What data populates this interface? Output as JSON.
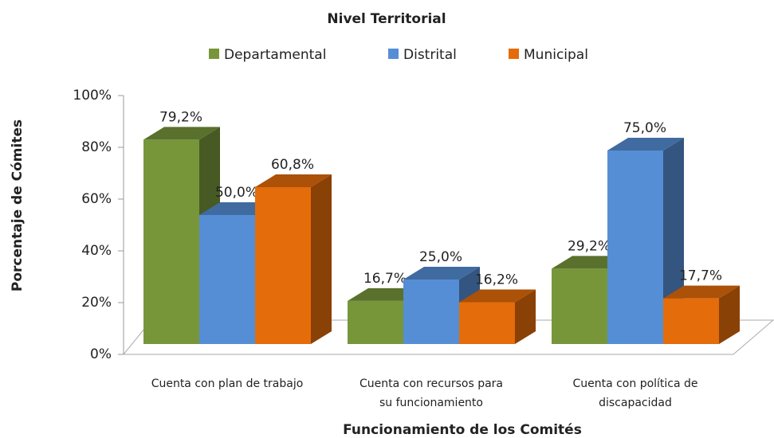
{
  "chart_data": {
    "type": "bar3d",
    "title": "Nivel Territorial",
    "xlabel": "Funcionamiento de los Comités",
    "ylabel": "Porcentaje de Cómites",
    "categories": [
      "Cuenta con plan de trabajo",
      "Cuenta con recursos para su funcionamiento",
      "Cuenta con política de discapacidad"
    ],
    "series": [
      {
        "name": "Departamental",
        "color": "#77963a",
        "values": [
          79.2,
          16.7,
          29.2
        ],
        "value_labels": [
          "79,2%",
          "16,7%",
          "29,2%"
        ]
      },
      {
        "name": "Distrital",
        "color": "#558ed5",
        "values": [
          50.0,
          25.0,
          75.0
        ],
        "value_labels": [
          "50,0%",
          "25,0%",
          "75,0%"
        ]
      },
      {
        "name": "Municipal",
        "color": "#e46c0a",
        "values": [
          60.8,
          16.2,
          17.7
        ],
        "value_labels": [
          "60,8%",
          "16,2%",
          "17,7%"
        ]
      }
    ],
    "ylim": [
      0,
      100
    ],
    "yticks": [
      {
        "value": 0,
        "label": "0%"
      },
      {
        "value": 20,
        "label": "20%"
      },
      {
        "value": 40,
        "label": "40%"
      },
      {
        "value": 60,
        "label": "60%"
      },
      {
        "value": 80,
        "label": "80%"
      },
      {
        "value": 100,
        "label": "100%"
      }
    ],
    "legend": "top"
  }
}
